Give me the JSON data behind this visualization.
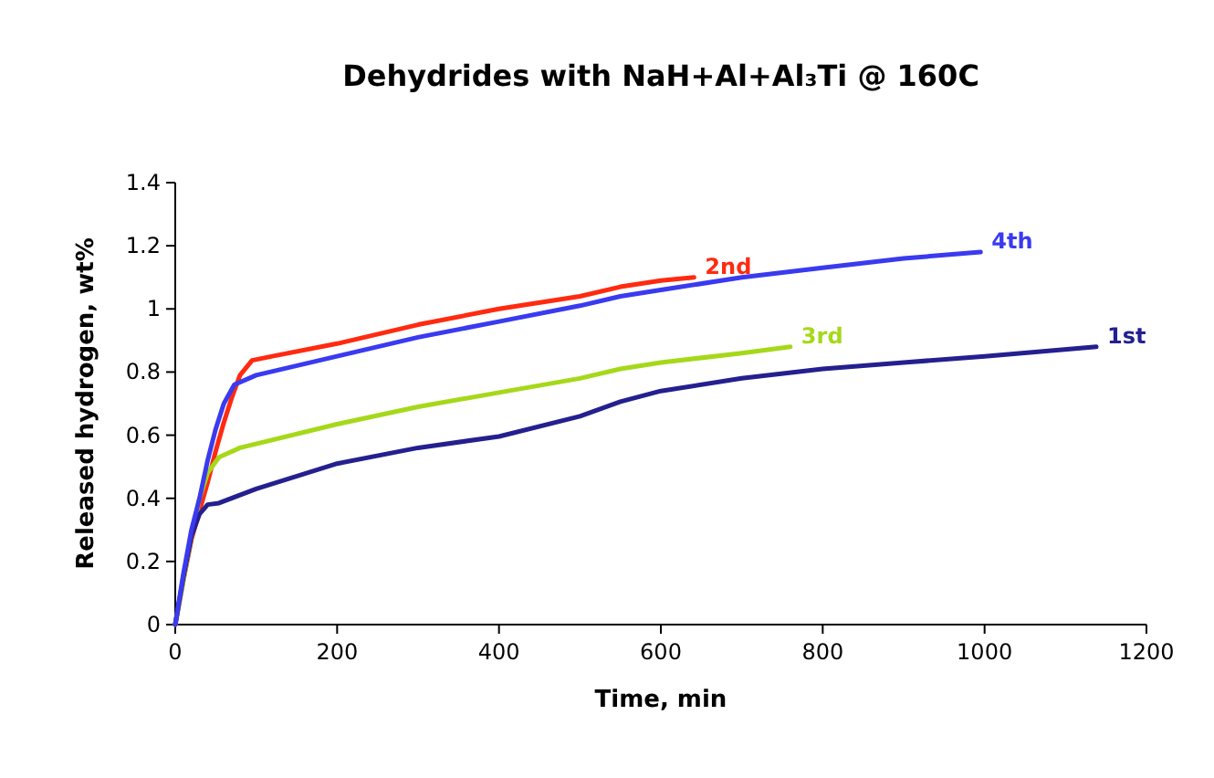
{
  "chart_data": {
    "type": "line",
    "title": "Dehydrides with NaH+Al+Al₃Ti @ 160C",
    "xlabel": "Time, min",
    "ylabel": "Released hydrogen, wt%",
    "xlim": [
      0,
      1200
    ],
    "xticks": [
      0,
      200,
      400,
      600,
      800,
      1000,
      1200
    ],
    "ylim": [
      0,
      1.4
    ],
    "yticks": [
      0,
      0.2,
      0.4,
      0.6,
      0.8,
      1,
      1.2,
      1.4
    ],
    "grid": false,
    "legend": false,
    "marker": "none",
    "line_style": "solid",
    "series": [
      {
        "name": "2nd",
        "color": "#ff2a10",
        "x": [
          0,
          10,
          20,
          30,
          40,
          50,
          60,
          70,
          80,
          95,
          120,
          200,
          300,
          400,
          500,
          550,
          600,
          641
        ],
        "values": [
          0,
          0.14,
          0.27,
          0.36,
          0.45,
          0.55,
          0.64,
          0.72,
          0.79,
          0.837,
          0.85,
          0.89,
          0.95,
          1.0,
          1.04,
          1.07,
          1.09,
          1.1
        ]
      },
      {
        "name": "3rd",
        "color": "#a6d81a",
        "x": [
          0,
          10,
          20,
          30,
          40,
          54,
          80,
          200,
          300,
          400,
          500,
          550,
          600,
          700,
          760
        ],
        "values": [
          0,
          0.14,
          0.28,
          0.4,
          0.48,
          0.53,
          0.56,
          0.635,
          0.69,
          0.735,
          0.78,
          0.81,
          0.83,
          0.86,
          0.88
        ]
      },
      {
        "name": "1st",
        "color": "#24208f",
        "x": [
          0,
          10,
          20,
          30,
          40,
          54,
          100,
          200,
          300,
          400,
          500,
          550,
          600,
          700,
          800,
          900,
          1000,
          1138
        ],
        "values": [
          0,
          0.15,
          0.28,
          0.35,
          0.38,
          0.385,
          0.43,
          0.51,
          0.56,
          0.596,
          0.66,
          0.706,
          0.74,
          0.78,
          0.81,
          0.83,
          0.85,
          0.88
        ]
      },
      {
        "name": "4th",
        "color": "#3a3af0",
        "x": [
          0,
          10,
          20,
          30,
          40,
          50,
          60,
          73,
          100,
          200,
          300,
          400,
          500,
          550,
          600,
          700,
          800,
          900,
          995
        ],
        "values": [
          0,
          0.16,
          0.3,
          0.4,
          0.52,
          0.62,
          0.7,
          0.76,
          0.79,
          0.85,
          0.91,
          0.96,
          1.01,
          1.04,
          1.06,
          1.1,
          1.13,
          1.16,
          1.18
        ]
      }
    ]
  }
}
